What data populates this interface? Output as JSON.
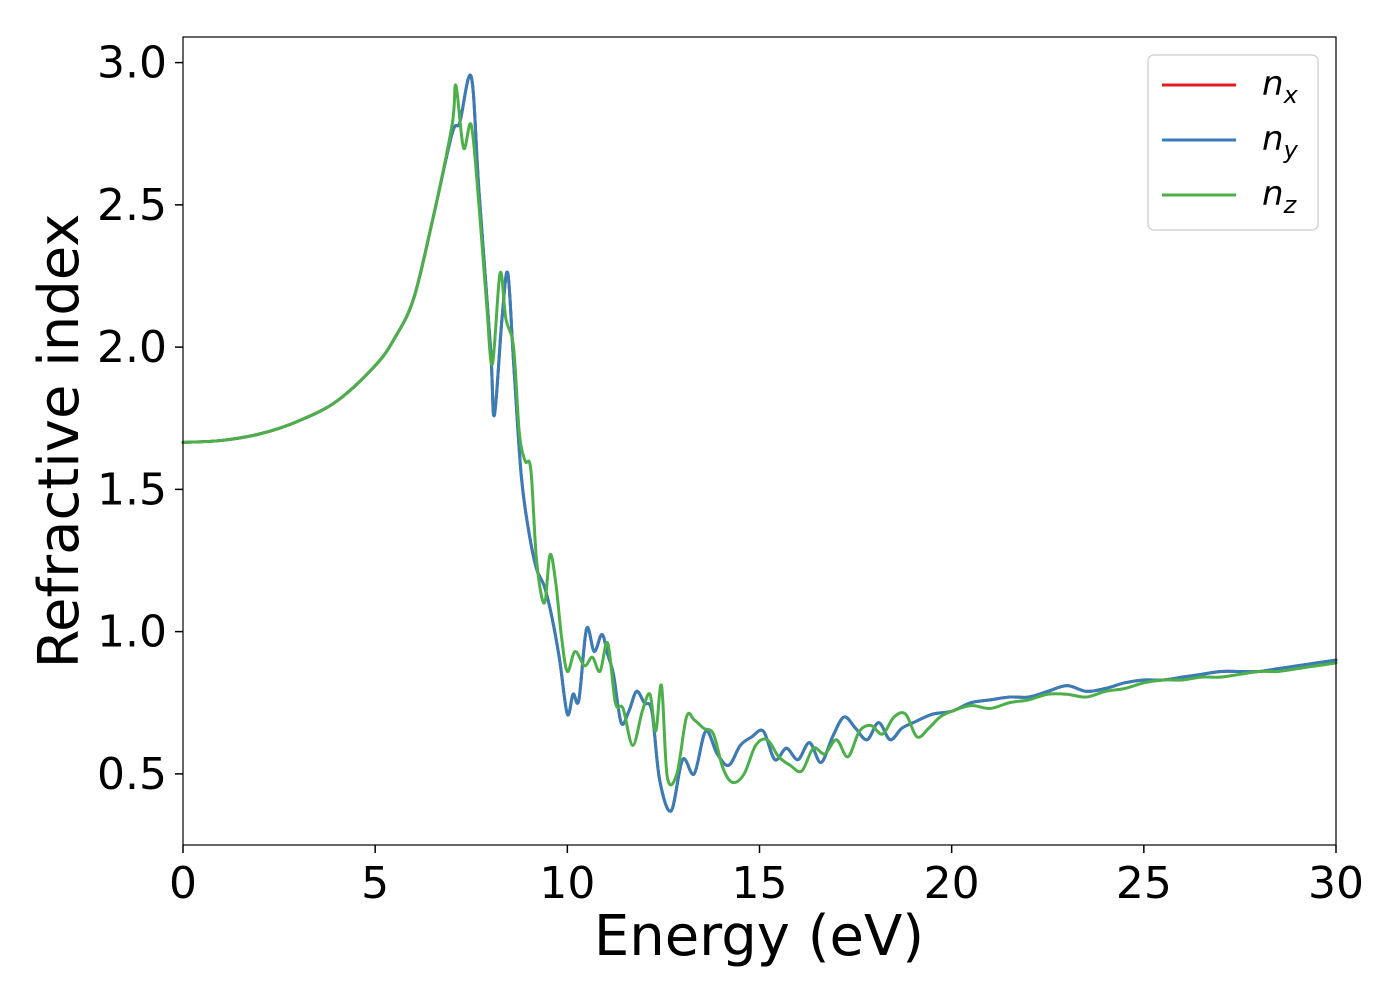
{
  "chart_data": {
    "type": "line",
    "title": "",
    "xlabel": "Energy (eV)",
    "ylabel": "Refractive index",
    "xlim": [
      0,
      30
    ],
    "ylim": [
      0.25,
      3.09
    ],
    "x_ticks": [
      "0",
      "5",
      "10",
      "15",
      "20",
      "25",
      "30"
    ],
    "y_ticks": [
      "0.5",
      "1.0",
      "1.5",
      "2.0",
      "2.5",
      "3.0"
    ],
    "grid": false,
    "legend_position": "top-right",
    "series": [
      {
        "name": "n_x",
        "label_main": "n",
        "label_sub": "x",
        "color": "#e41a1c",
        "x": [
          0,
          1,
          2,
          3,
          4,
          5,
          5.5,
          6,
          6.5,
          7,
          7.2,
          7.5,
          7.7,
          8,
          8.1,
          8.3,
          8.45,
          8.6,
          8.8,
          9,
          9.2,
          9.4,
          9.6,
          9.8,
          10,
          10.15,
          10.3,
          10.5,
          10.7,
          10.9,
          11.05,
          11.2,
          11.4,
          11.6,
          11.8,
          12,
          12.2,
          12.4,
          12.7,
          13,
          13.3,
          13.6,
          13.9,
          14.2,
          14.5,
          14.8,
          15.1,
          15.4,
          15.7,
          16,
          16.3,
          16.6,
          16.9,
          17.2,
          17.5,
          17.8,
          18.1,
          18.4,
          18.7,
          19,
          19.5,
          20,
          20.5,
          21,
          21.5,
          22,
          22.5,
          23,
          23.5,
          24,
          24.5,
          25,
          25.5,
          26,
          26.5,
          27,
          27.5,
          28,
          28.5,
          29,
          29.5,
          30
        ],
        "y": [
          1.665,
          1.672,
          1.695,
          1.74,
          1.81,
          1.935,
          2.03,
          2.17,
          2.45,
          2.75,
          2.79,
          2.95,
          2.55,
          2.0,
          1.76,
          2.1,
          2.26,
          1.95,
          1.55,
          1.35,
          1.22,
          1.16,
          1.05,
          0.9,
          0.71,
          0.78,
          0.76,
          1.01,
          0.93,
          0.99,
          0.92,
          0.85,
          0.68,
          0.72,
          0.79,
          0.75,
          0.72,
          0.48,
          0.37,
          0.55,
          0.5,
          0.65,
          0.57,
          0.53,
          0.6,
          0.63,
          0.65,
          0.55,
          0.59,
          0.55,
          0.61,
          0.54,
          0.63,
          0.7,
          0.66,
          0.62,
          0.68,
          0.62,
          0.66,
          0.68,
          0.71,
          0.72,
          0.75,
          0.76,
          0.77,
          0.77,
          0.79,
          0.81,
          0.79,
          0.8,
          0.82,
          0.83,
          0.83,
          0.84,
          0.85,
          0.86,
          0.86,
          0.86,
          0.87,
          0.88,
          0.89,
          0.9
        ]
      },
      {
        "name": "n_y",
        "label_main": "n",
        "label_sub": "y",
        "color": "#377eb8",
        "x": [
          0,
          1,
          2,
          3,
          4,
          5,
          5.5,
          6,
          6.5,
          7,
          7.2,
          7.5,
          7.7,
          8,
          8.1,
          8.3,
          8.45,
          8.6,
          8.8,
          9,
          9.2,
          9.4,
          9.6,
          9.8,
          10,
          10.15,
          10.3,
          10.5,
          10.7,
          10.9,
          11.05,
          11.2,
          11.4,
          11.6,
          11.8,
          12,
          12.2,
          12.4,
          12.7,
          13,
          13.3,
          13.6,
          13.9,
          14.2,
          14.5,
          14.8,
          15.1,
          15.4,
          15.7,
          16,
          16.3,
          16.6,
          16.9,
          17.2,
          17.5,
          17.8,
          18.1,
          18.4,
          18.7,
          19,
          19.5,
          20,
          20.5,
          21,
          21.5,
          22,
          22.5,
          23,
          23.5,
          24,
          24.5,
          25,
          25.5,
          26,
          26.5,
          27,
          27.5,
          28,
          28.5,
          29,
          29.5,
          30
        ],
        "y": [
          1.665,
          1.672,
          1.695,
          1.74,
          1.81,
          1.935,
          2.03,
          2.17,
          2.45,
          2.75,
          2.79,
          2.95,
          2.55,
          2.0,
          1.76,
          2.1,
          2.26,
          1.95,
          1.55,
          1.35,
          1.22,
          1.16,
          1.05,
          0.9,
          0.71,
          0.78,
          0.76,
          1.01,
          0.93,
          0.99,
          0.92,
          0.85,
          0.68,
          0.72,
          0.79,
          0.75,
          0.72,
          0.48,
          0.37,
          0.55,
          0.5,
          0.65,
          0.57,
          0.53,
          0.6,
          0.63,
          0.65,
          0.55,
          0.59,
          0.55,
          0.61,
          0.54,
          0.63,
          0.7,
          0.66,
          0.62,
          0.68,
          0.62,
          0.66,
          0.68,
          0.71,
          0.72,
          0.75,
          0.76,
          0.77,
          0.77,
          0.79,
          0.81,
          0.79,
          0.8,
          0.82,
          0.83,
          0.83,
          0.84,
          0.85,
          0.86,
          0.86,
          0.86,
          0.87,
          0.88,
          0.89,
          0.9
        ]
      },
      {
        "name": "n_z",
        "label_main": "n",
        "label_sub": "z",
        "color": "#4daf4a",
        "x": [
          0,
          1,
          2,
          3,
          4,
          5,
          5.5,
          6,
          6.5,
          7,
          7.1,
          7.3,
          7.5,
          7.7,
          7.9,
          8.05,
          8.25,
          8.4,
          8.6,
          8.75,
          8.9,
          9.05,
          9.2,
          9.4,
          9.55,
          9.7,
          9.85,
          10.0,
          10.2,
          10.45,
          10.65,
          10.85,
          11.05,
          11.25,
          11.45,
          11.7,
          11.95,
          12.15,
          12.3,
          12.45,
          12.6,
          12.85,
          13.1,
          13.3,
          13.55,
          13.8,
          14.05,
          14.3,
          14.6,
          14.9,
          15.2,
          15.5,
          15.8,
          16.1,
          16.4,
          16.7,
          17.0,
          17.3,
          17.6,
          17.9,
          18.2,
          18.5,
          18.8,
          19.1,
          19.4,
          19.7,
          20.0,
          20.5,
          21,
          21.5,
          22,
          22.5,
          23,
          23.5,
          24,
          24.5,
          25,
          25.5,
          26,
          26.5,
          27,
          27.5,
          28,
          28.5,
          29,
          29.5,
          30
        ],
        "y": [
          1.665,
          1.672,
          1.695,
          1.74,
          1.81,
          1.935,
          2.03,
          2.17,
          2.45,
          2.78,
          2.92,
          2.7,
          2.78,
          2.5,
          2.15,
          1.94,
          2.26,
          2.1,
          2.0,
          1.7,
          1.6,
          1.57,
          1.25,
          1.1,
          1.27,
          1.17,
          0.98,
          0.86,
          0.93,
          0.88,
          0.91,
          0.86,
          0.96,
          0.75,
          0.73,
          0.6,
          0.72,
          0.78,
          0.65,
          0.81,
          0.49,
          0.5,
          0.7,
          0.69,
          0.66,
          0.64,
          0.52,
          0.47,
          0.5,
          0.6,
          0.62,
          0.56,
          0.53,
          0.51,
          0.59,
          0.57,
          0.62,
          0.56,
          0.65,
          0.67,
          0.64,
          0.7,
          0.71,
          0.63,
          0.66,
          0.7,
          0.72,
          0.74,
          0.73,
          0.75,
          0.76,
          0.78,
          0.78,
          0.77,
          0.79,
          0.8,
          0.82,
          0.83,
          0.83,
          0.84,
          0.84,
          0.85,
          0.86,
          0.86,
          0.87,
          0.88,
          0.89
        ]
      }
    ]
  }
}
